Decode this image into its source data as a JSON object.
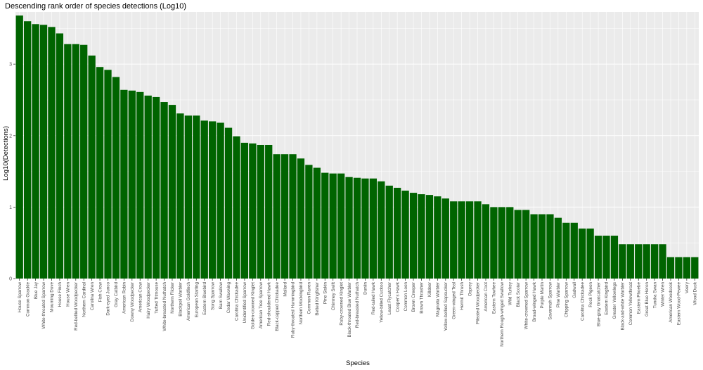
{
  "chart_data": {
    "type": "bar",
    "title": "Descending rank order of species detections (Log10)",
    "xlabel": "Species",
    "ylabel": "Log10(Detections)",
    "ylim": [
      0,
      3.73
    ],
    "yticks": [
      0,
      1,
      2,
      3
    ],
    "grid": true,
    "bar_color": "#006400",
    "panel_color": "#ebebeb",
    "grid_color": "#ffffff",
    "categories": [
      "House Sparrow",
      "Common Grackle",
      "Blue Jay",
      "White-throated Sparrow",
      "Mourning Dove",
      "House Finch",
      "House Wren",
      "Red-bellied Woodpecker",
      "Northern Cardinal",
      "Carolina Wren",
      "Fish Crow",
      "Dark-eyed Junco",
      "Gray Catbird",
      "American Robin",
      "Downy Woodpecker",
      "American Crow",
      "Hairy Woodpecker",
      "Tufted Titmouse",
      "White-breasted Nuthatch",
      "Northern Flicker",
      "Blackpoll Warbler",
      "American Goldfinch",
      "European Starling",
      "Eastern Bluebird",
      "Song Sparrow",
      "Barn Swallow",
      "Cedar Waxwing",
      "Carolina Chickadee",
      "Unidentified Sparrow",
      "Golden-crowned Kinglet",
      "American Tree Sparrow",
      "Red-shouldered Hawk",
      "Black-capped Chickadee",
      "Mallard",
      "Ruby-throated Hummingbird",
      "Northern Mockingbird",
      "Common Raven",
      "Belted Kingfisher",
      "Pine Siskin",
      "Chimney Swift",
      "Ruby-crowned Kinglet",
      "Black-throated Blue Warbler",
      "Red-breasted Nuthatch",
      "Dunlin",
      "Red-tailed Hawk",
      "Yellow-billed Cuckoo",
      "Least Flycatcher",
      "Cooper's Hawk",
      "Common Loon",
      "Brown Creeper",
      "Brown Thrasher",
      "Killdeer",
      "Magnolia Warbler",
      "Yellow-bellied Sapsucker",
      "Green-winged Teal",
      "Hermit Thrush",
      "Osprey",
      "Pileated Woodpecker",
      "American Coot",
      "Eastern Towhee",
      "Northern Rough-winged Swallow",
      "Wild Turkey",
      "Black Scoter",
      "White-crowned Sparrow",
      "Broad-winged Hawk",
      "Purple Martin",
      "Savannah Sparrow",
      "Pine Warbler",
      "Chipping Sparrow",
      "Gadwall",
      "Carolina Chickadee",
      "Rock Pigeon",
      "Blue-gray Gnatcatcher",
      "Eastern Kingbird",
      "Greater Yellowlegs",
      "Black-and-white Warbler",
      "Common Yellowthroat",
      "Eastern Phoebe",
      "Great Blue Heron",
      "Tundra Swan",
      "Winter Wren",
      "American Woodcock",
      "Eastern Wood-Pewee",
      "Veery",
      "Wood Duck"
    ],
    "values": [
      3.68,
      3.6,
      3.56,
      3.55,
      3.52,
      3.43,
      3.28,
      3.28,
      3.27,
      3.12,
      2.96,
      2.92,
      2.82,
      2.64,
      2.63,
      2.61,
      2.56,
      2.54,
      2.47,
      2.43,
      2.31,
      2.28,
      2.28,
      2.21,
      2.2,
      2.18,
      2.11,
      1.99,
      1.9,
      1.89,
      1.87,
      1.87,
      1.74,
      1.74,
      1.74,
      1.68,
      1.59,
      1.55,
      1.48,
      1.47,
      1.47,
      1.42,
      1.41,
      1.4,
      1.4,
      1.36,
      1.3,
      1.27,
      1.23,
      1.2,
      1.18,
      1.17,
      1.15,
      1.12,
      1.08,
      1.08,
      1.08,
      1.08,
      1.04,
      1.0,
      1.0,
      1.0,
      0.96,
      0.96,
      0.9,
      0.9,
      0.9,
      0.85,
      0.78,
      0.78,
      0.7,
      0.7,
      0.6,
      0.6,
      0.6,
      0.48,
      0.48,
      0.48,
      0.48,
      0.48,
      0.48,
      0.3,
      0.3,
      0.3,
      0.3
    ]
  }
}
